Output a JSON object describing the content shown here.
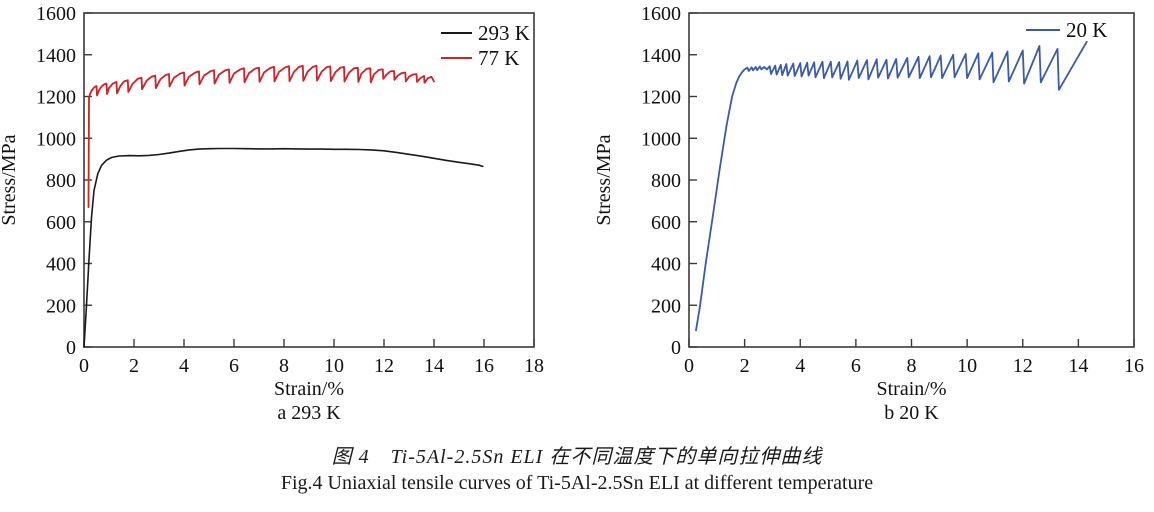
{
  "figure": {
    "caption_zh": "图 4　Ti-5Al-2.5Sn ELI 在不同温度下的单向拉伸曲线",
    "caption_en": "Fig.4 Uniaxial tensile curves of Ti-5Al-2.5Sn ELI at different temperature"
  },
  "chart_data": [
    {
      "type": "line",
      "panel": "a",
      "subtitle": "a  293 K",
      "xlabel": "Strain/%",
      "ylabel": "Stress/MPa",
      "xlim": [
        0,
        18
      ],
      "ylim": [
        0,
        1600
      ],
      "xticks": [
        0,
        2,
        4,
        6,
        8,
        10,
        12,
        14,
        16,
        18
      ],
      "yticks": [
        0,
        200,
        400,
        600,
        800,
        1000,
        1200,
        1400,
        1600
      ],
      "grid": false,
      "legend_position": "top-right-inside",
      "frame_color": "#3a3a3a",
      "series": [
        {
          "name": "293 K",
          "color": "#1a1a1a",
          "width": 1.6,
          "points": [
            [
              0,
              0
            ],
            [
              0.1,
              200
            ],
            [
              0.2,
              420
            ],
            [
              0.3,
              620
            ],
            [
              0.4,
              750
            ],
            [
              0.55,
              830
            ],
            [
              0.7,
              870
            ],
            [
              0.9,
              895
            ],
            [
              1.1,
              908
            ],
            [
              1.4,
              915
            ],
            [
              1.8,
              917
            ],
            [
              2.2,
              916
            ],
            [
              2.6,
              918
            ],
            [
              3.0,
              922
            ],
            [
              3.4,
              929
            ],
            [
              3.8,
              937
            ],
            [
              4.2,
              944
            ],
            [
              4.6,
              948
            ],
            [
              5.0,
              950
            ],
            [
              5.5,
              951
            ],
            [
              6.0,
              951
            ],
            [
              6.5,
              950
            ],
            [
              7.0,
              949
            ],
            [
              7.5,
              949
            ],
            [
              8.0,
              950
            ],
            [
              8.5,
              949
            ],
            [
              9.0,
              948
            ],
            [
              9.5,
              948
            ],
            [
              10.0,
              947
            ],
            [
              10.5,
              947
            ],
            [
              11.0,
              946
            ],
            [
              11.5,
              944
            ],
            [
              12.0,
              940
            ],
            [
              12.5,
              932
            ],
            [
              13.0,
              923
            ],
            [
              13.5,
              914
            ],
            [
              14.0,
              904
            ],
            [
              14.5,
              894
            ],
            [
              15.0,
              885
            ],
            [
              15.4,
              878
            ],
            [
              15.8,
              871
            ],
            [
              15.95,
              865
            ]
          ]
        },
        {
          "name": "77 K",
          "color": "#cc2428",
          "width": 1.8,
          "points": [
            [
              0.18,
              670
            ],
            [
              0.2,
              1195
            ],
            [
              0.25,
              1215
            ],
            [
              0.3,
              1228
            ],
            [
              0.38,
              1240
            ],
            [
              0.45,
              1248
            ],
            [
              0.5,
              1250
            ],
            [
              0.52,
              1205
            ],
            [
              0.6,
              1230
            ],
            [
              0.7,
              1248
            ],
            [
              0.8,
              1258
            ],
            [
              0.9,
              1262
            ],
            [
              0.92,
              1212
            ],
            [
              1.0,
              1240
            ],
            [
              1.15,
              1262
            ],
            [
              1.3,
              1270
            ],
            [
              1.32,
              1215
            ],
            [
              1.45,
              1250
            ],
            [
              1.6,
              1272
            ],
            [
              1.75,
              1278
            ],
            [
              1.77,
              1222
            ],
            [
              1.95,
              1262
            ],
            [
              2.15,
              1285
            ],
            [
              2.3,
              1290
            ],
            [
              2.32,
              1235
            ],
            [
              2.5,
              1275
            ],
            [
              2.7,
              1295
            ],
            [
              2.85,
              1300
            ],
            [
              2.87,
              1240
            ],
            [
              3.05,
              1282
            ],
            [
              3.25,
              1302
            ],
            [
              3.4,
              1308
            ],
            [
              3.42,
              1248
            ],
            [
              3.6,
              1290
            ],
            [
              3.85,
              1310
            ],
            [
              4.0,
              1315
            ],
            [
              4.02,
              1252
            ],
            [
              4.2,
              1295
            ],
            [
              4.45,
              1315
            ],
            [
              4.6,
              1320
            ],
            [
              4.62,
              1258
            ],
            [
              4.8,
              1300
            ],
            [
              5.05,
              1320
            ],
            [
              5.2,
              1326
            ],
            [
              5.22,
              1262
            ],
            [
              5.4,
              1305
            ],
            [
              5.65,
              1326
            ],
            [
              5.8,
              1330
            ],
            [
              5.82,
              1265
            ],
            [
              6.0,
              1310
            ],
            [
              6.25,
              1330
            ],
            [
              6.4,
              1335
            ],
            [
              6.42,
              1268
            ],
            [
              6.6,
              1312
            ],
            [
              6.85,
              1334
            ],
            [
              7.0,
              1338
            ],
            [
              7.02,
              1270
            ],
            [
              7.2,
              1315
            ],
            [
              7.45,
              1337
            ],
            [
              7.6,
              1342
            ],
            [
              7.62,
              1272
            ],
            [
              7.8,
              1318
            ],
            [
              8.05,
              1340
            ],
            [
              8.2,
              1345
            ],
            [
              8.22,
              1274
            ],
            [
              8.4,
              1318
            ],
            [
              8.6,
              1342
            ],
            [
              8.75,
              1347
            ],
            [
              8.77,
              1275
            ],
            [
              8.95,
              1320
            ],
            [
              9.15,
              1342
            ],
            [
              9.3,
              1347
            ],
            [
              9.32,
              1276
            ],
            [
              9.5,
              1318
            ],
            [
              9.7,
              1340
            ],
            [
              9.85,
              1344
            ],
            [
              9.87,
              1274
            ],
            [
              10.05,
              1316
            ],
            [
              10.25,
              1338
            ],
            [
              10.4,
              1342
            ],
            [
              10.42,
              1272
            ],
            [
              10.6,
              1314
            ],
            [
              10.8,
              1335
            ],
            [
              10.95,
              1338
            ],
            [
              10.97,
              1270
            ],
            [
              11.1,
              1310
            ],
            [
              11.3,
              1332
            ],
            [
              11.45,
              1335
            ],
            [
              11.47,
              1268
            ],
            [
              11.6,
              1306
            ],
            [
              11.8,
              1328
            ],
            [
              11.95,
              1330
            ],
            [
              11.97,
              1285
            ],
            [
              12.1,
              1305
            ],
            [
              12.25,
              1320
            ],
            [
              12.4,
              1322
            ],
            [
              12.42,
              1280
            ],
            [
              12.55,
              1300
            ],
            [
              12.7,
              1312
            ],
            [
              12.85,
              1315
            ],
            [
              12.87,
              1272
            ],
            [
              13.0,
              1295
            ],
            [
              13.15,
              1305
            ],
            [
              13.3,
              1308
            ],
            [
              13.32,
              1270
            ],
            [
              13.45,
              1288
            ],
            [
              13.6,
              1298
            ],
            [
              13.62,
              1265
            ],
            [
              13.75,
              1288
            ],
            [
              13.9,
              1294
            ],
            [
              14.0,
              1272
            ]
          ]
        }
      ]
    },
    {
      "type": "line",
      "panel": "b",
      "subtitle": "b  20 K",
      "xlabel": "Strain/%",
      "ylabel": "Stress/MPa",
      "xlim": [
        0,
        16
      ],
      "ylim": [
        0,
        1600
      ],
      "xticks": [
        0,
        2,
        4,
        6,
        8,
        10,
        12,
        14,
        16
      ],
      "yticks": [
        0,
        200,
        400,
        600,
        800,
        1000,
        1200,
        1400,
        1600
      ],
      "grid": false,
      "legend_position": "top-right-inside",
      "frame_color": "#3a3a3a",
      "series": [
        {
          "name": "20 K",
          "color": "#3b5aa6",
          "width": 1.8,
          "points": [
            [
              0.25,
              80
            ],
            [
              0.4,
              200
            ],
            [
              0.6,
              400
            ],
            [
              0.85,
              620
            ],
            [
              1.1,
              850
            ],
            [
              1.35,
              1060
            ],
            [
              1.55,
              1200
            ],
            [
              1.7,
              1265
            ],
            [
              1.8,
              1295
            ],
            [
              1.9,
              1315
            ],
            [
              2.0,
              1330
            ],
            [
              2.1,
              1338
            ],
            [
              2.15,
              1322
            ],
            [
              2.25,
              1340
            ],
            [
              2.3,
              1325
            ],
            [
              2.4,
              1342
            ],
            [
              2.45,
              1326
            ],
            [
              2.55,
              1344
            ],
            [
              2.6,
              1330
            ],
            [
              2.7,
              1342
            ],
            [
              2.8,
              1330
            ],
            [
              2.9,
              1345
            ],
            [
              2.95,
              1308
            ],
            [
              3.1,
              1348
            ],
            [
              3.15,
              1305
            ],
            [
              3.3,
              1352
            ],
            [
              3.35,
              1302
            ],
            [
              3.5,
              1355
            ],
            [
              3.55,
              1300
            ],
            [
              3.75,
              1358
            ],
            [
              3.8,
              1298
            ],
            [
              4.0,
              1360
            ],
            [
              4.05,
              1296
            ],
            [
              4.25,
              1362
            ],
            [
              4.3,
              1300
            ],
            [
              4.5,
              1364
            ],
            [
              4.55,
              1292
            ],
            [
              4.8,
              1366
            ],
            [
              4.85,
              1288
            ],
            [
              5.1,
              1366
            ],
            [
              5.15,
              1292
            ],
            [
              5.4,
              1365
            ],
            [
              5.45,
              1285
            ],
            [
              5.7,
              1368
            ],
            [
              5.75,
              1280
            ],
            [
              6.05,
              1372
            ],
            [
              6.1,
              1288
            ],
            [
              6.4,
              1375
            ],
            [
              6.45,
              1282
            ],
            [
              6.75,
              1378
            ],
            [
              6.8,
              1290
            ],
            [
              7.1,
              1376
            ],
            [
              7.15,
              1286
            ],
            [
              7.45,
              1380
            ],
            [
              7.5,
              1290
            ],
            [
              7.85,
              1385
            ],
            [
              7.9,
              1292
            ],
            [
              8.25,
              1390
            ],
            [
              8.3,
              1288
            ],
            [
              8.65,
              1393
            ],
            [
              8.7,
              1292
            ],
            [
              9.05,
              1396
            ],
            [
              9.1,
              1288
            ],
            [
              9.5,
              1400
            ],
            [
              9.55,
              1292
            ],
            [
              9.95,
              1404
            ],
            [
              10.0,
              1288
            ],
            [
              10.4,
              1407
            ],
            [
              10.45,
              1282
            ],
            [
              10.9,
              1410
            ],
            [
              10.95,
              1268
            ],
            [
              11.45,
              1415
            ],
            [
              11.5,
              1272
            ],
            [
              12.0,
              1420
            ],
            [
              12.05,
              1262
            ],
            [
              12.6,
              1442
            ],
            [
              12.65,
              1268
            ],
            [
              13.25,
              1428
            ],
            [
              13.3,
              1232
            ],
            [
              14.3,
              1462
            ]
          ]
        }
      ]
    }
  ]
}
